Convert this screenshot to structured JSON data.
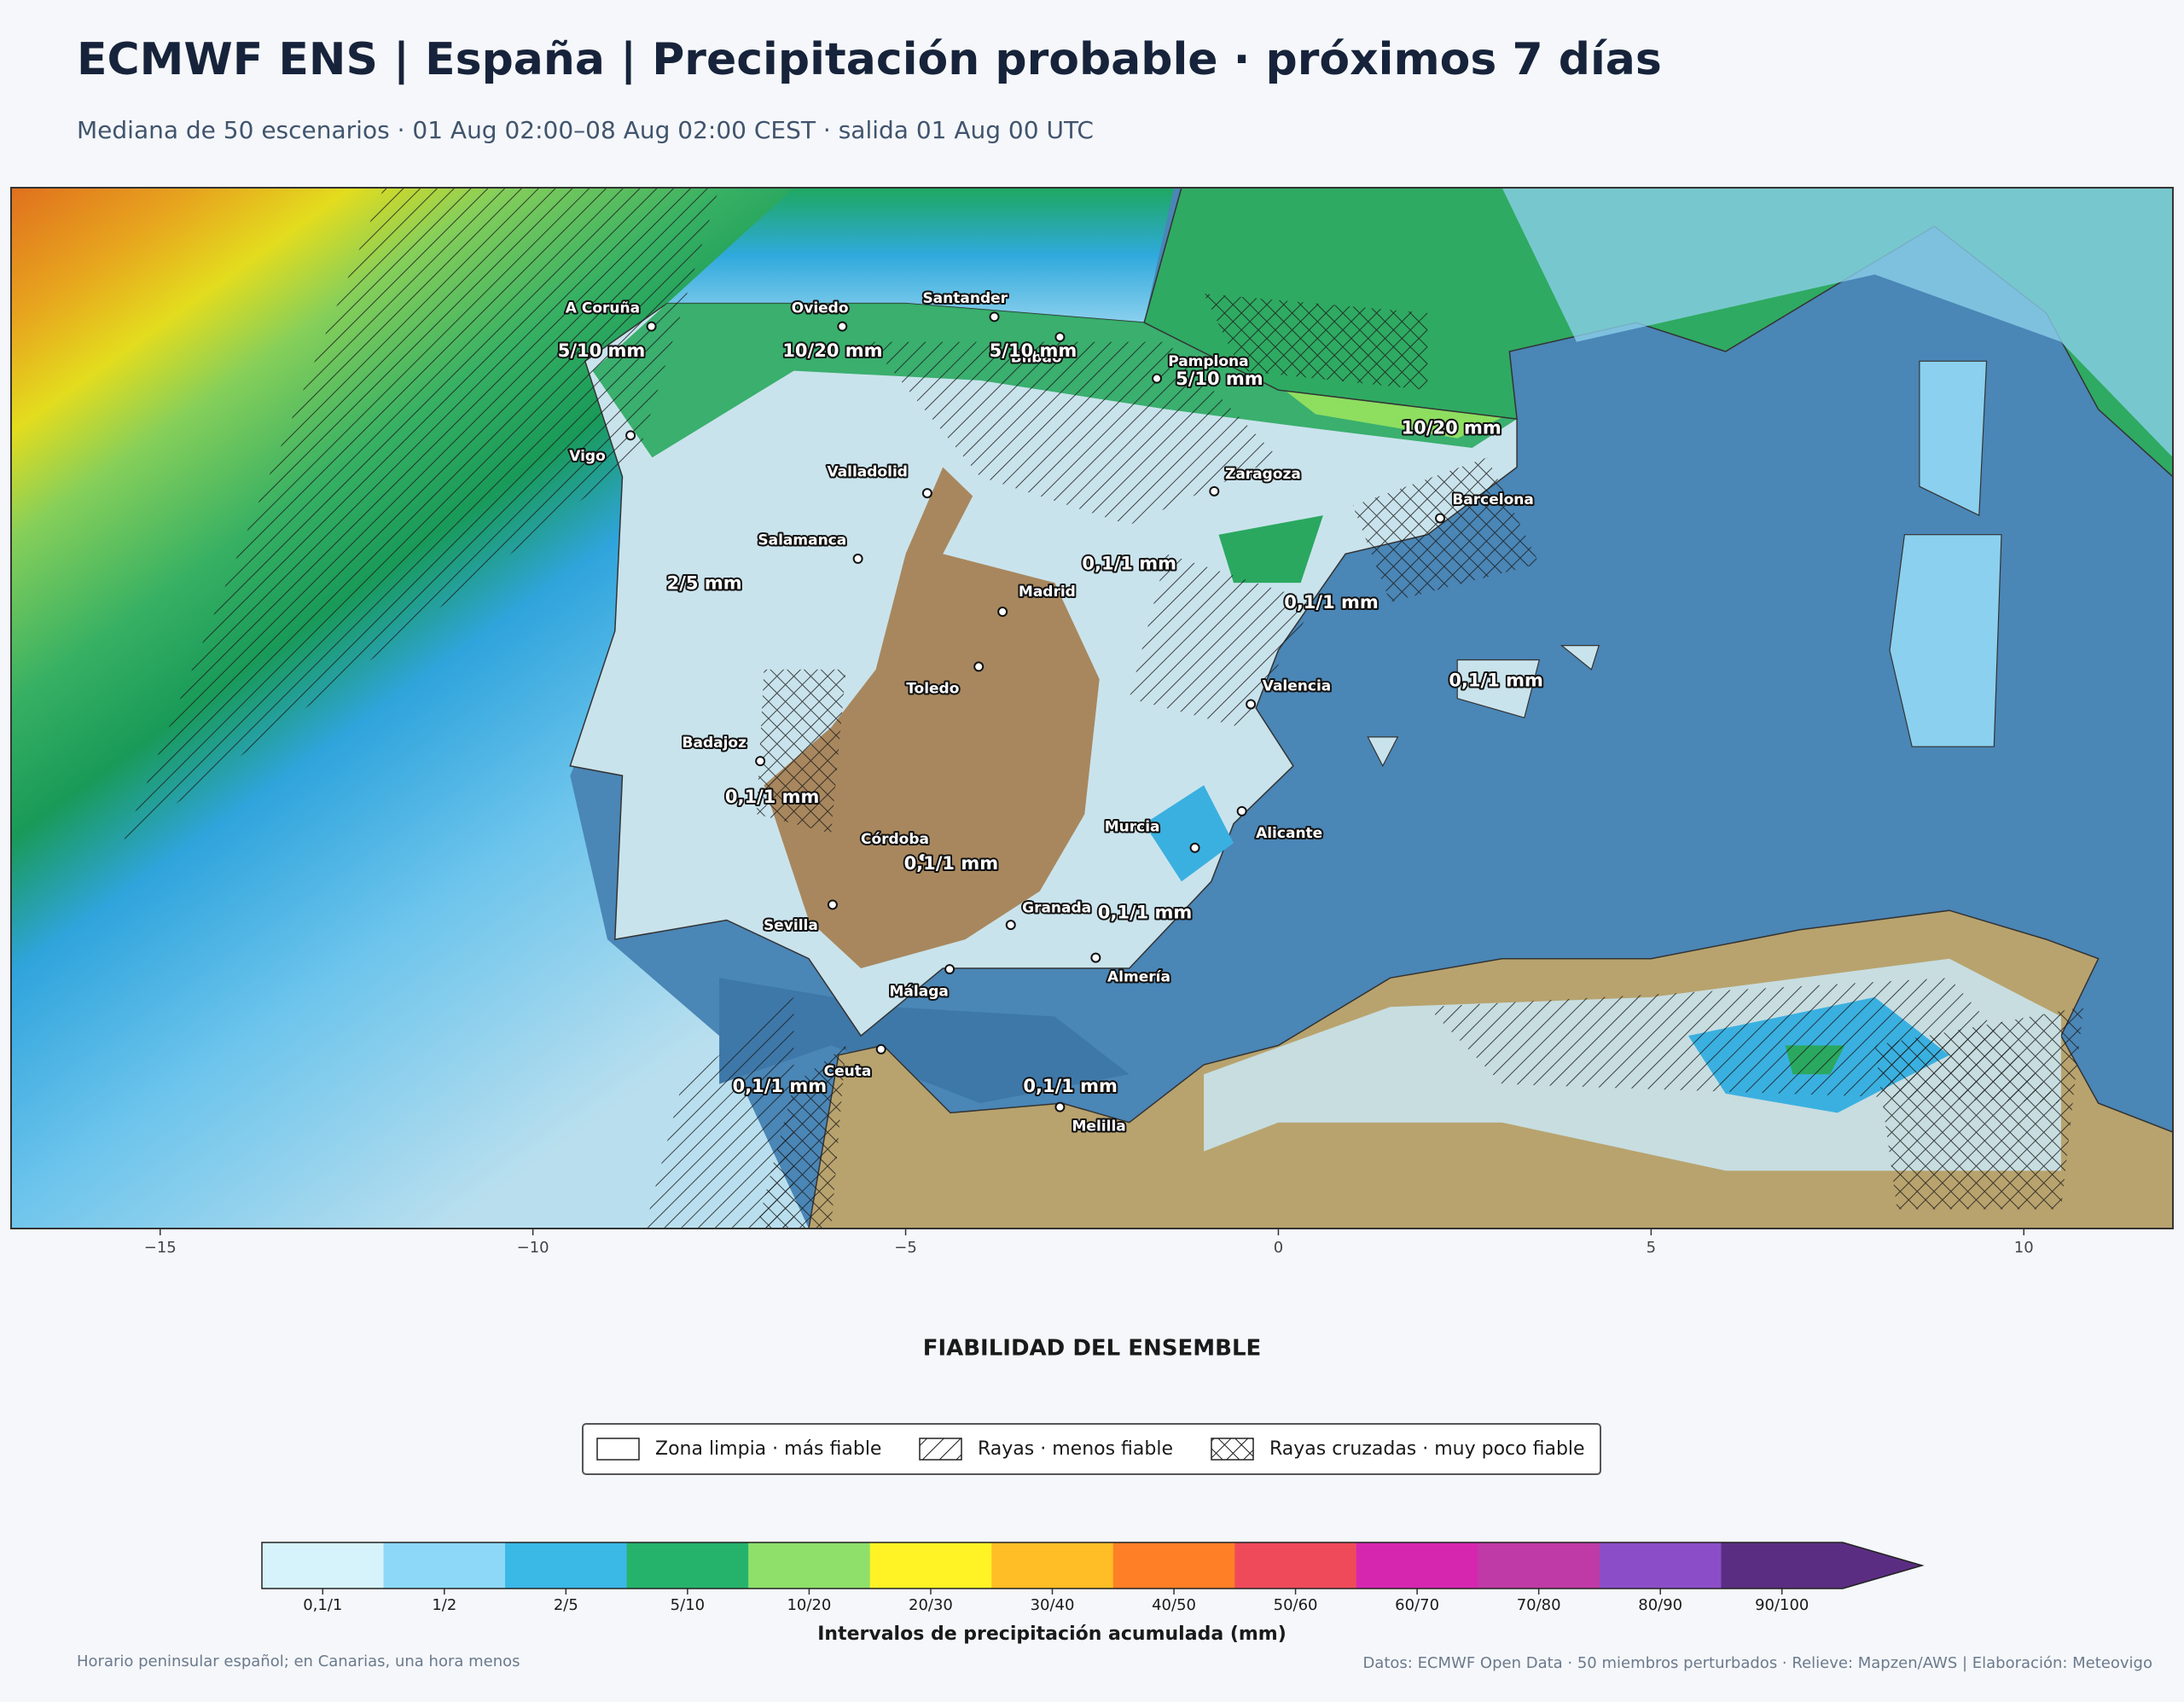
{
  "header": {
    "title": "ECMWF ENS | España | Precipitación probable · próximos 7 días",
    "subtitle": "Mediana de 50 escenarios · 01 Aug 02:00–08 Aug 02:00 CEST · salida 01 Aug 00 UTC"
  },
  "map": {
    "xlim": [
      -17,
      12
    ],
    "ylim": [
      34,
      44.8
    ],
    "xticks": [
      {
        "value": -15,
        "label": "−15"
      },
      {
        "value": -10,
        "label": "−10"
      },
      {
        "value": -5,
        "label": "−5"
      },
      0,
      5,
      10
    ],
    "cities": [
      {
        "name": "A Coruña",
        "lon": -8.41,
        "lat": 43.36
      },
      {
        "name": "Vigo",
        "lon": -8.69,
        "lat": 42.23
      },
      {
        "name": "Oviedo",
        "lon": -5.85,
        "lat": 43.36
      },
      {
        "name": "Santander",
        "lon": -3.81,
        "lat": 43.46
      },
      {
        "name": "Bilbao",
        "lon": -2.93,
        "lat": 43.25
      },
      {
        "name": "Pamplona",
        "lon": -1.63,
        "lat": 42.82
      },
      {
        "name": "Zaragoza",
        "lon": -0.86,
        "lat": 41.65
      },
      {
        "name": "Barcelona",
        "lon": 2.17,
        "lat": 41.37
      },
      {
        "name": "Valladolid",
        "lon": -4.71,
        "lat": 41.63
      },
      {
        "name": "Salamanca",
        "lon": -5.64,
        "lat": 40.95
      },
      {
        "name": "Madrid",
        "lon": -3.7,
        "lat": 40.4
      },
      {
        "name": "Toledo",
        "lon": -4.02,
        "lat": 39.83
      },
      {
        "name": "Valencia",
        "lon": -0.37,
        "lat": 39.44
      },
      {
        "name": "Badajoz",
        "lon": -6.95,
        "lat": 38.85
      },
      {
        "name": "Córdoba",
        "lon": -4.77,
        "lat": 37.85
      },
      {
        "name": "Sevilla",
        "lon": -5.98,
        "lat": 37.36
      },
      {
        "name": "Granada",
        "lon": -3.59,
        "lat": 37.15
      },
      {
        "name": "Málaga",
        "lon": -4.41,
        "lat": 36.69
      },
      {
        "name": "Almería",
        "lon": -2.45,
        "lat": 36.81
      },
      {
        "name": "Murcia",
        "lon": -1.12,
        "lat": 37.95
      },
      {
        "name": "Alicante",
        "lon": -0.49,
        "lat": 38.33
      },
      {
        "name": "Ceuta",
        "lon": -5.33,
        "lat": 35.86
      },
      {
        "name": "Melilla",
        "lon": -2.93,
        "lat": 35.26
      }
    ],
    "amount_labels": [
      {
        "text": "5/10 mm",
        "lon": -9.08,
        "lat": 43.1
      },
      {
        "text": "10/20 mm",
        "lon": -5.98,
        "lat": 43.1
      },
      {
        "text": "5/10 mm",
        "lon": -3.29,
        "lat": 43.1
      },
      {
        "text": "5/10 mm",
        "lon": -0.79,
        "lat": 42.81
      },
      {
        "text": "10/20 mm",
        "lon": 2.32,
        "lat": 42.3
      },
      {
        "text": "2/5 mm",
        "lon": -7.7,
        "lat": 40.69
      },
      {
        "text": "0,1/1 mm",
        "lon": -2.0,
        "lat": 40.89
      },
      {
        "text": "0,1/1 mm",
        "lon": 0.71,
        "lat": 40.49
      },
      {
        "text": "0,1/1 mm",
        "lon": 2.92,
        "lat": 39.68
      },
      {
        "text": "0,1/1 mm",
        "lon": -6.79,
        "lat": 38.47
      },
      {
        "text": "0,1/1 mm",
        "lon": -4.39,
        "lat": 37.78
      },
      {
        "text": "0,1/1 mm",
        "lon": -1.79,
        "lat": 37.27
      },
      {
        "text": "0,1/1 mm",
        "lon": -6.69,
        "lat": 35.47
      },
      {
        "text": "0,1/1 mm",
        "lon": -2.79,
        "lat": 35.47
      }
    ]
  },
  "reliability": {
    "title": "FIABILIDAD DEL ENSEMBLE",
    "items": [
      "Zona limpia · más fiable",
      "Rayas · menos fiable",
      "Rayas cruzadas · muy poco fiable"
    ]
  },
  "colorbar": {
    "title": "Intervalos de precipitación acumulada (mm)",
    "classes": [
      {
        "label": "0,1/1",
        "color": "#d6f3fb"
      },
      {
        "label": "1/2",
        "color": "#8dd8f8"
      },
      {
        "label": "2/5",
        "color": "#3ab8e6"
      },
      {
        "label": "5/10",
        "color": "#25b36b"
      },
      {
        "label": "10/20",
        "color": "#8ee06a"
      },
      {
        "label": "20/30",
        "color": "#fff326"
      },
      {
        "label": "30/40",
        "color": "#ffbe26"
      },
      {
        "label": "40/50",
        "color": "#ff7f26"
      },
      {
        "label": "50/60",
        "color": "#ef4a5a"
      },
      {
        "label": "60/70",
        "color": "#d626b0"
      },
      {
        "label": "70/80",
        "color": "#bf3aa6"
      },
      {
        "label": "80/90",
        "color": "#8c4ec8"
      },
      {
        "label": "90/100",
        "color": "#5a2d82"
      }
    ]
  },
  "footer": {
    "left": "Horario peninsular español; en Canarias, una hora menos",
    "right": "Datos: ECMWF Open Data · 50 miembros perturbados · Relieve: Mapzen/AWS | Elaboración: Meteovigo"
  }
}
